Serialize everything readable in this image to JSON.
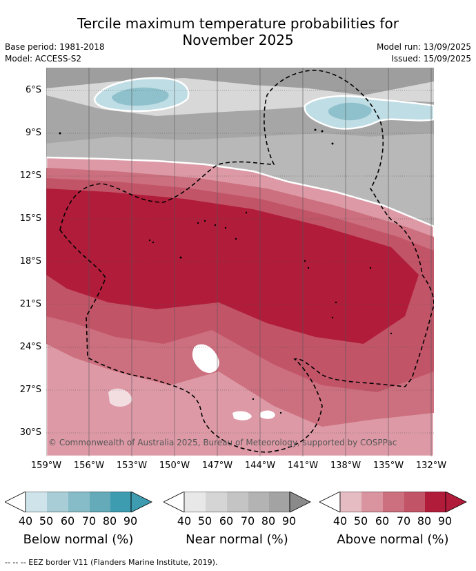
{
  "title_line1": "Tercile maximum temperature probabilities for",
  "title_line2": "November 2025",
  "base_period": "Base period: 1981-2018",
  "model": "Model: ACCESS-S2",
  "model_run": "Model run: 13/09/2025",
  "issued": "Issued: 15/09/2025",
  "y_ticks": [
    "6°S",
    "9°S",
    "12°S",
    "15°S",
    "18°S",
    "21°S",
    "24°S",
    "27°S",
    "30°S"
  ],
  "x_ticks": [
    "159°W",
    "156°W",
    "153°W",
    "150°W",
    "147°W",
    "144°W",
    "141°W",
    "138°W",
    "135°W",
    "132°W"
  ],
  "copyright": "© Commonwealth of Australia 2025, Bureau of Meteorology, supported by COSPPac",
  "footer": "-- -- -- EEZ border V11 (Flanders Marine Institute, 2019).",
  "legend": {
    "tick_values": [
      "40",
      "50",
      "60",
      "70",
      "80",
      "90"
    ],
    "below": {
      "label": "Below normal (%)",
      "colors": [
        "#ffffff",
        "#cfe4ea",
        "#a8cdd6",
        "#86bcc7",
        "#65aab8",
        "#3e9cb0"
      ]
    },
    "near": {
      "label": "Near normal (%)",
      "colors": [
        "#ffffff",
        "#e8e8e8",
        "#d5d5d5",
        "#c4c4c4",
        "#b3b3b3",
        "#a3a3a3"
      ]
    },
    "above": {
      "label": "Above normal (%)",
      "colors": [
        "#ffffff",
        "#e6bcc3",
        "#d9949f",
        "#cc6f7e",
        "#c25468",
        "#b01c3a"
      ]
    },
    "tip_colors": {
      "below": "#3e9cb0",
      "near": "#8a8a8a",
      "above": "#b01c3a"
    }
  }
}
